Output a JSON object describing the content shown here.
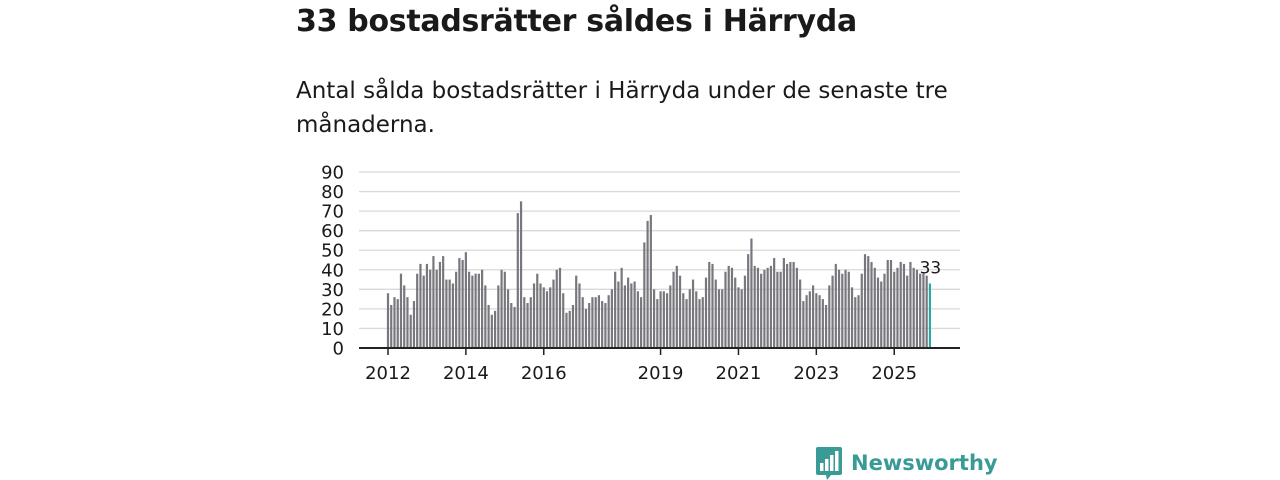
{
  "header": {
    "title": "33 bostadsrätter såldes i Härryda",
    "subtitle": "Antal sålda bostadsrätter i Härryda under de senaste tre månaderna."
  },
  "brand": {
    "name": "Newsworthy",
    "color": "#3a9a96"
  },
  "colors": {
    "bar": "#77777d",
    "highlight": "#2aa8a4",
    "grid": "#d9d9d9",
    "axis": "#222222"
  },
  "chart_data": {
    "type": "bar",
    "title": "33 bostadsrätter såldes i Härryda",
    "subtitle": "Antal sålda bostadsrätter i Härryda under de senaste tre månaderna.",
    "xlabel": "",
    "ylabel": "",
    "ylim": [
      0,
      90
    ],
    "yticks": [
      0,
      10,
      20,
      30,
      40,
      50,
      60,
      70,
      80,
      90
    ],
    "grid": true,
    "start": "2012-01",
    "interval": "month",
    "xtick_labels": [
      {
        "label": "2012",
        "index": 0
      },
      {
        "label": "2014",
        "index": 24
      },
      {
        "label": "2016",
        "index": 48
      },
      {
        "label": "2019",
        "index": 84
      },
      {
        "label": "2021",
        "index": 108
      },
      {
        "label": "2023",
        "index": 132
      },
      {
        "label": "2025",
        "index": 156
      }
    ],
    "values": [
      28,
      22,
      26,
      25,
      38,
      32,
      26,
      17,
      24,
      38,
      43,
      37,
      43,
      40,
      47,
      40,
      44,
      47,
      35,
      35,
      33,
      39,
      46,
      45,
      49,
      39,
      37,
      38,
      38,
      40,
      32,
      22,
      17,
      19,
      32,
      40,
      39,
      30,
      23,
      21,
      69,
      75,
      26,
      23,
      26,
      33,
      38,
      33,
      31,
      29,
      31,
      35,
      40,
      41,
      28,
      18,
      19,
      22,
      37,
      33,
      26,
      20,
      23,
      26,
      26,
      27,
      24,
      23,
      27,
      30,
      39,
      34,
      41,
      32,
      36,
      33,
      34,
      29,
      26,
      54,
      65,
      68,
      30,
      25,
      29,
      29,
      28,
      32,
      39,
      42,
      37,
      28,
      25,
      30,
      35,
      29,
      25,
      26,
      36,
      44,
      43,
      35,
      30,
      30,
      39,
      42,
      41,
      36,
      31,
      30,
      37,
      48,
      56,
      42,
      41,
      38,
      40,
      41,
      42,
      46,
      39,
      39,
      46,
      43,
      44,
      44,
      41,
      35,
      24,
      27,
      29,
      32,
      28,
      27,
      25,
      22,
      32,
      37,
      43,
      40,
      38,
      40,
      39,
      31,
      26,
      27,
      38,
      48,
      47,
      44,
      41,
      36,
      34,
      38,
      45,
      45,
      39,
      41,
      44,
      43,
      37,
      44,
      41,
      40,
      38,
      38,
      37,
      33
    ],
    "highlight_last": 1,
    "annotation": {
      "label": "33",
      "index": 167,
      "value": 33
    }
  }
}
